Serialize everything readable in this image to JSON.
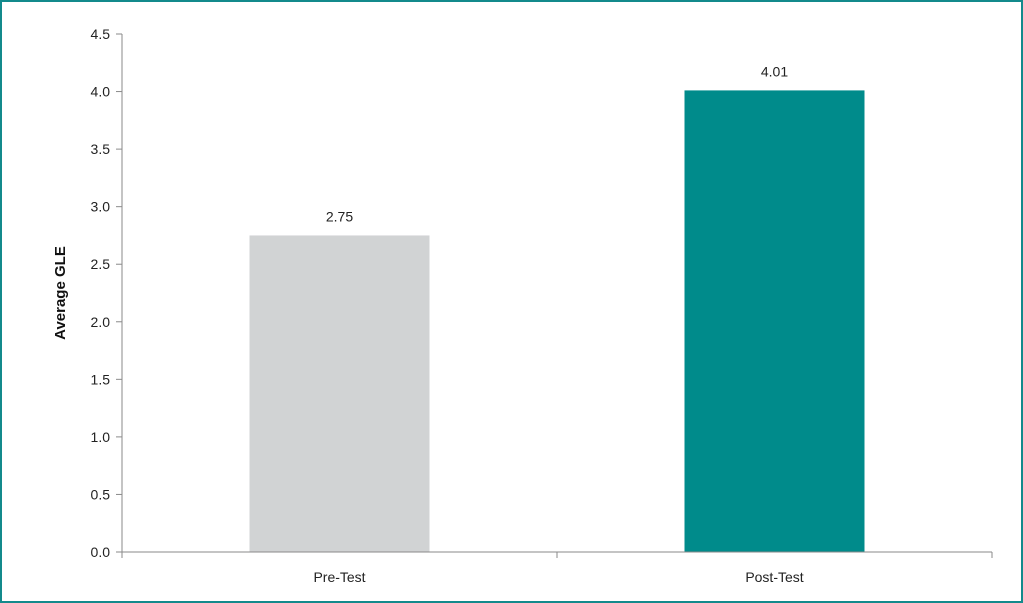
{
  "chart_data": {
    "type": "bar",
    "categories": [
      "Pre-Test",
      "Post-Test"
    ],
    "values": [
      2.75,
      4.01
    ],
    "data_labels": [
      "2.75",
      "4.01"
    ],
    "bar_colors": [
      "#d1d3d4",
      "#008b8b"
    ],
    "frame_color": "#138a8c",
    "title": "",
    "xlabel": "",
    "ylabel": "Average GLE",
    "ylim": [
      0,
      4.5
    ],
    "yticks": [
      0.0,
      0.5,
      1.0,
      1.5,
      2.0,
      2.5,
      3.0,
      3.5,
      4.0,
      4.5
    ],
    "ytick_labels": [
      "0.0",
      "0.5",
      "1.0",
      "1.5",
      "2.0",
      "2.5",
      "3.0",
      "3.5",
      "4.0",
      "4.5"
    ],
    "grid": false,
    "legend": "none"
  }
}
